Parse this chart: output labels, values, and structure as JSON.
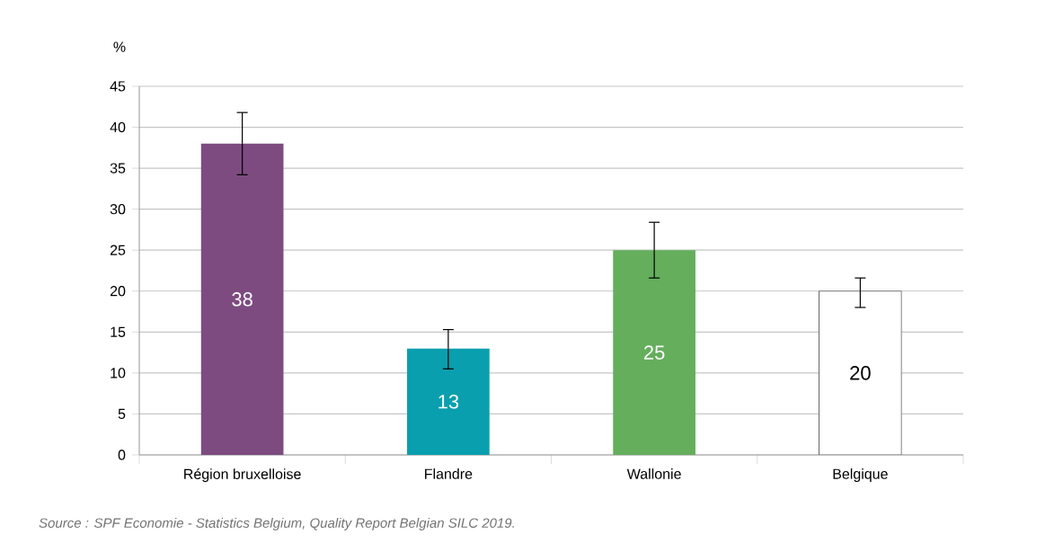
{
  "chart_data": {
    "type": "bar",
    "ylabel": "%",
    "categories": [
      "Région bruxelloise",
      "Flandre",
      "Wallonie",
      "Belgique"
    ],
    "values": [
      38,
      13,
      25,
      20
    ],
    "colors": [
      "#7d4b80",
      "#0a9fae",
      "#64ae5c",
      "#ffffff"
    ],
    "errors": [
      [
        34.2,
        41.8
      ],
      [
        10.5,
        15.3
      ],
      [
        21.6,
        28.4
      ],
      [
        18.0,
        21.6
      ]
    ],
    "ylim": [
      0,
      45
    ],
    "yticks": [
      0,
      5,
      10,
      15,
      20,
      25,
      30,
      35,
      40,
      45
    ],
    "grid": "y",
    "data_labels": true,
    "annotations": [
      "Source : SPF Economie - Statistics Belgium, Quality Report Belgian SILC 2019."
    ]
  }
}
